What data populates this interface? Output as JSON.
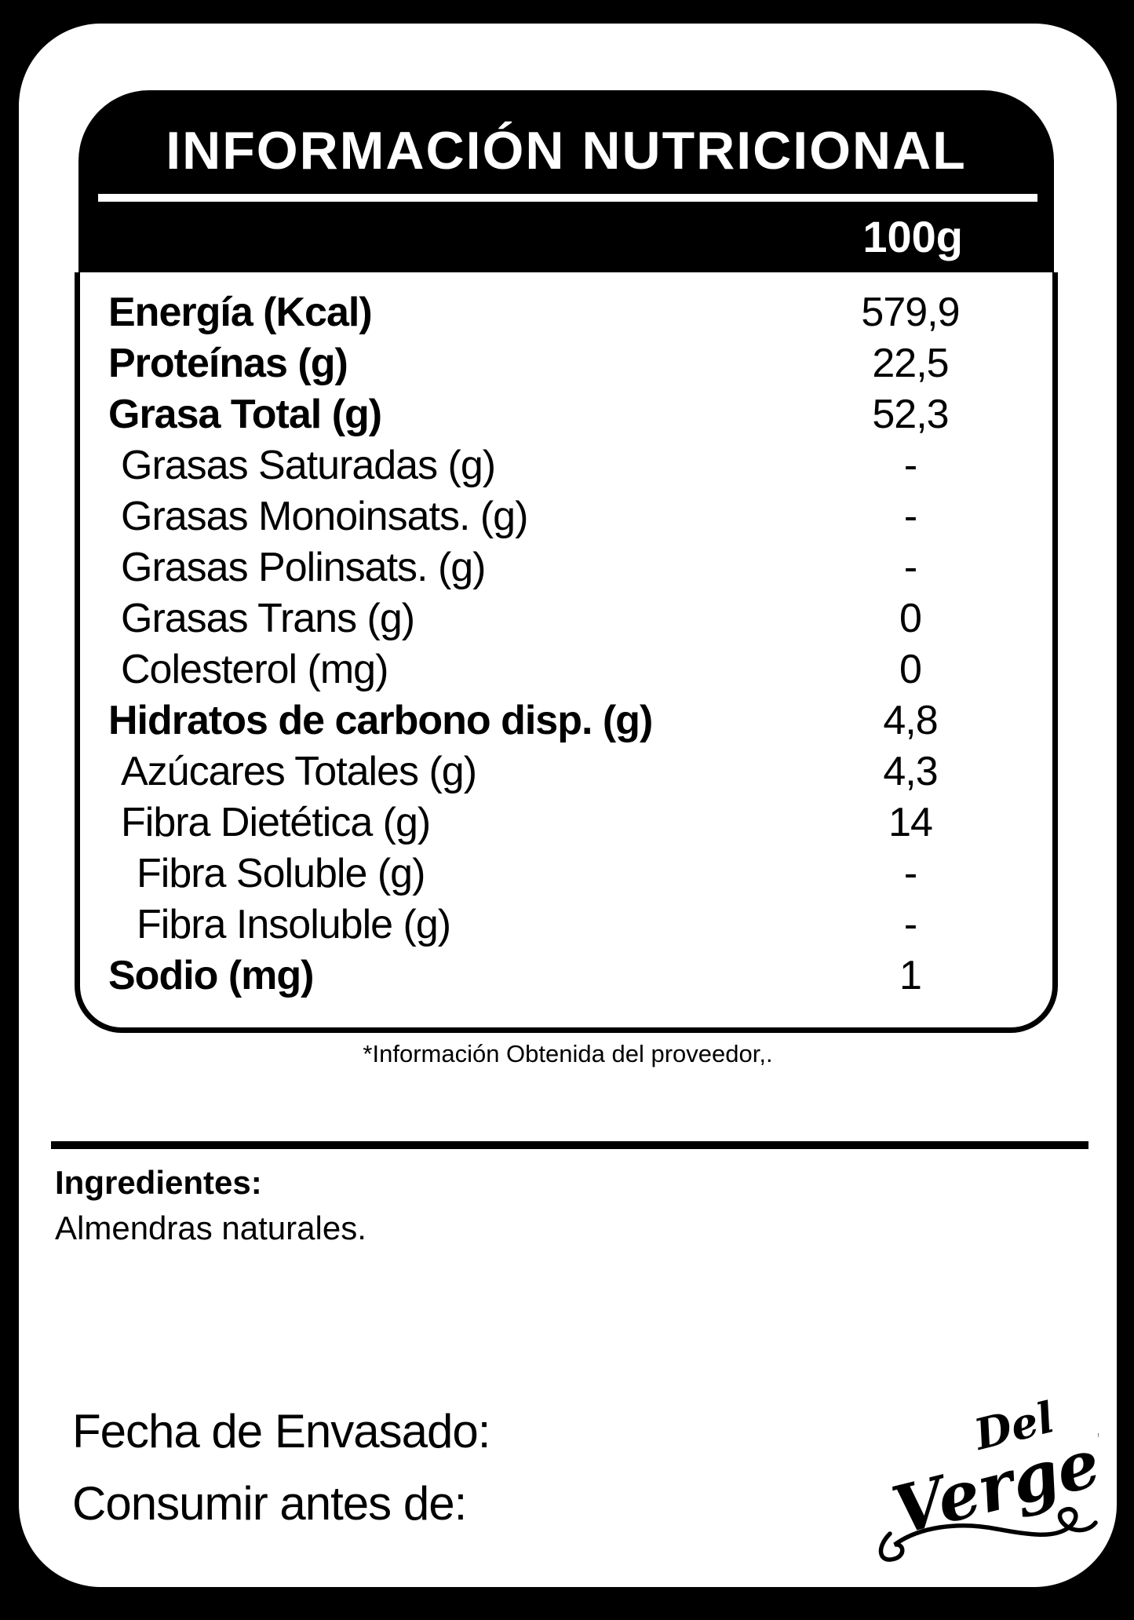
{
  "colors": {
    "ink": "#000000",
    "paper": "#ffffff"
  },
  "header": {
    "title": "INFORMACIÓN NUTRICIONAL",
    "serving": "100g"
  },
  "table": {
    "rows": [
      {
        "label": "Energía (Kcal)",
        "value": "579,9",
        "weight": "bold",
        "indent": 0
      },
      {
        "label": "Proteínas (g)",
        "value": "22,5",
        "weight": "bold",
        "indent": 0
      },
      {
        "label": "Grasa Total (g)",
        "value": "52,3",
        "weight": "bold",
        "indent": 0
      },
      {
        "label": "Grasas Saturadas (g)",
        "value": "-",
        "weight": "light",
        "indent": 1
      },
      {
        "label": "Grasas Monoinsats. (g)",
        "value": "-",
        "weight": "light",
        "indent": 1
      },
      {
        "label": "Grasas Polinsats. (g)",
        "value": "-",
        "weight": "light",
        "indent": 1
      },
      {
        "label": "Grasas Trans (g)",
        "value": "0",
        "weight": "light",
        "indent": 1
      },
      {
        "label": "Colesterol (mg)",
        "value": "0",
        "weight": "light",
        "indent": 1
      },
      {
        "label": "Hidratos de carbono disp. (g)",
        "value": "4,8",
        "weight": "bold",
        "indent": 0
      },
      {
        "label": "Azúcares Totales (g)",
        "value": "4,3",
        "weight": "light",
        "indent": 1
      },
      {
        "label": "Fibra Dietética (g)",
        "value": "14",
        "weight": "light",
        "indent": 1
      },
      {
        "label": "Fibra Soluble (g)",
        "value": "-",
        "weight": "light",
        "indent": 2
      },
      {
        "label": "Fibra Insoluble (g)",
        "value": "-",
        "weight": "light",
        "indent": 2
      },
      {
        "label": "Sodio (mg)",
        "value": "1",
        "weight": "bold",
        "indent": 0
      }
    ]
  },
  "footnote": "*Información Obtenida del proveedor,.",
  "ingredients": {
    "heading": "Ingredientes:",
    "text": "Almendras naturales."
  },
  "dates": {
    "packed_label": "Fecha de Envasado:",
    "best_before_label": "Consumir antes de:"
  },
  "brand": {
    "line1": "Del",
    "line2": "Vergel"
  }
}
